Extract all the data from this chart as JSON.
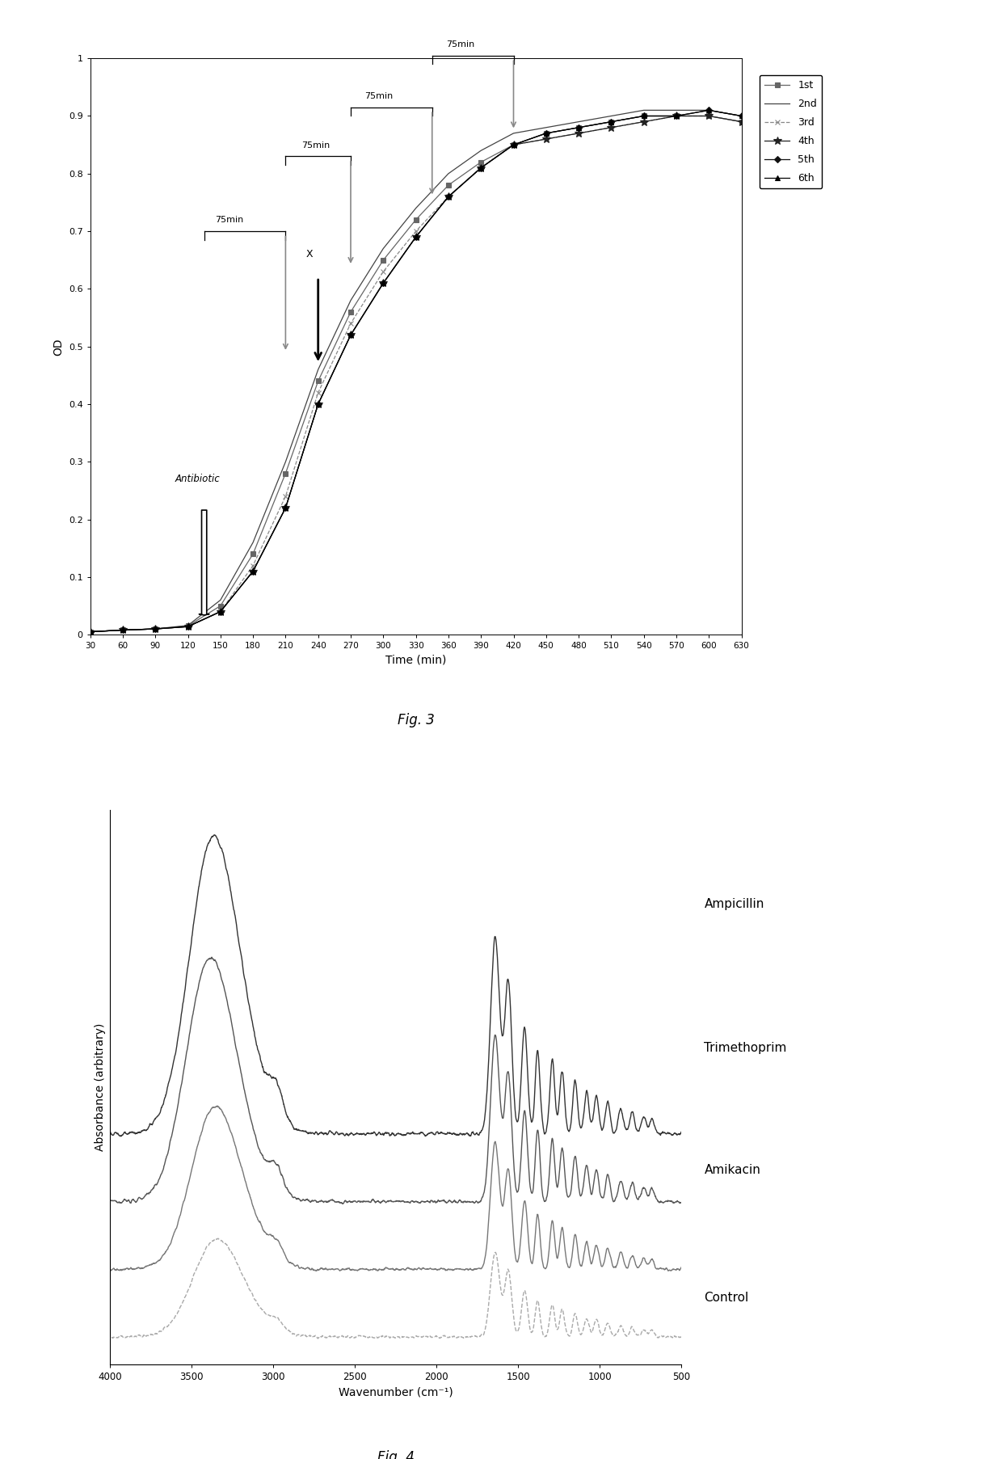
{
  "fig3": {
    "time": [
      30,
      60,
      90,
      120,
      150,
      180,
      210,
      240,
      270,
      300,
      330,
      360,
      390,
      420,
      450,
      480,
      510,
      540,
      570,
      600,
      630
    ],
    "series": {
      "1st": [
        0.005,
        0.008,
        0.01,
        0.015,
        0.05,
        0.14,
        0.28,
        0.44,
        0.56,
        0.65,
        0.72,
        0.78,
        0.82,
        0.85,
        0.87,
        0.88,
        0.89,
        0.9,
        0.9,
        0.9,
        0.89
      ],
      "2nd": [
        0.005,
        0.008,
        0.01,
        0.016,
        0.06,
        0.16,
        0.3,
        0.46,
        0.58,
        0.67,
        0.74,
        0.8,
        0.84,
        0.87,
        0.88,
        0.89,
        0.9,
        0.91,
        0.91,
        0.91,
        0.9
      ],
      "3rd": [
        0.005,
        0.008,
        0.01,
        0.014,
        0.04,
        0.12,
        0.24,
        0.42,
        0.54,
        0.63,
        0.7,
        0.76,
        0.81,
        0.85,
        0.86,
        0.87,
        0.88,
        0.89,
        0.9,
        0.9,
        0.89
      ],
      "4th": [
        0.005,
        0.008,
        0.01,
        0.014,
        0.04,
        0.11,
        0.22,
        0.4,
        0.52,
        0.61,
        0.69,
        0.76,
        0.81,
        0.85,
        0.86,
        0.87,
        0.88,
        0.89,
        0.9,
        0.9,
        0.89
      ],
      "5th": [
        0.005,
        0.008,
        0.01,
        0.014,
        0.04,
        0.11,
        0.22,
        0.4,
        0.52,
        0.61,
        0.69,
        0.76,
        0.81,
        0.85,
        0.87,
        0.88,
        0.89,
        0.9,
        0.9,
        0.91,
        0.9
      ],
      "6th": [
        0.005,
        0.008,
        0.01,
        0.014,
        0.04,
        0.11,
        0.22,
        0.4,
        0.52,
        0.61,
        0.69,
        0.76,
        0.81,
        0.85,
        0.87,
        0.88,
        0.89,
        0.9,
        0.9,
        0.91,
        0.9
      ]
    },
    "colors": {
      "1st": "#666666",
      "2nd": "#444444",
      "3rd": "#888888",
      "4th": "#222222",
      "5th": "#111111",
      "6th": "#000000"
    },
    "markers": {
      "1st": "s",
      "2nd": "None",
      "3rd": "x",
      "4th": "*",
      "5th": "D",
      "6th": "^"
    },
    "marker_sizes": {
      "1st": 4,
      "2nd": 0,
      "3rd": 5,
      "4th": 7,
      "5th": 4,
      "6th": 5
    },
    "linestyles": {
      "1st": "-",
      "2nd": "-",
      "3rd": "--",
      "4th": "-",
      "5th": "-",
      "6th": "-"
    },
    "xlabel": "Time (min)",
    "ylabel": "OD",
    "yticks": [
      0,
      0.1,
      0.2,
      0.3,
      0.4,
      0.5,
      0.6,
      0.7,
      0.8,
      0.9,
      1
    ],
    "xticks": [
      30,
      60,
      90,
      120,
      150,
      180,
      210,
      240,
      270,
      300,
      330,
      360,
      390,
      420,
      450,
      480,
      510,
      540,
      570,
      600,
      630
    ]
  },
  "fig4": {
    "xlabel": "Wavenumber (cm⁻¹)",
    "ylabel": "Absorbance (arbitrary)",
    "labels": [
      "Ampicillin",
      "Trimethoprim",
      "Amikacin",
      "Control"
    ],
    "line_colors": [
      "#333333",
      "#555555",
      "#777777",
      "#aaaaaa"
    ],
    "line_styles": [
      "-",
      "-",
      "-",
      "--"
    ]
  }
}
